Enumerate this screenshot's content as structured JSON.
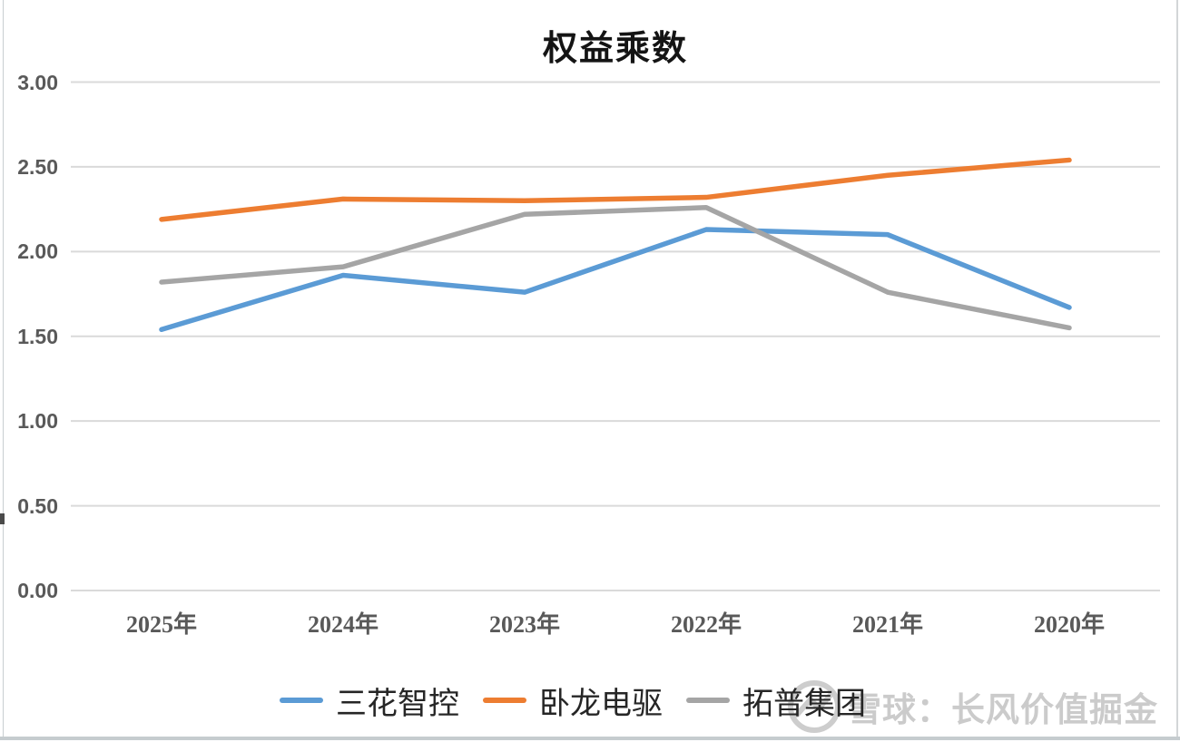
{
  "chart_data": {
    "type": "line",
    "title": "权益乘数",
    "categories": [
      "2025年",
      "2024年",
      "2023年",
      "2022年",
      "2021年",
      "2020年"
    ],
    "series": [
      {
        "name": "三花智控",
        "color": "#5B9BD5",
        "values": [
          1.54,
          1.86,
          1.76,
          2.13,
          2.1,
          1.67
        ]
      },
      {
        "name": "卧龙电驱",
        "color": "#ED7D31",
        "values": [
          2.19,
          2.31,
          2.3,
          2.32,
          2.45,
          2.54
        ]
      },
      {
        "name": "拓普集团",
        "color": "#A5A5A5",
        "values": [
          1.82,
          1.91,
          2.22,
          2.26,
          1.76,
          1.55
        ]
      }
    ],
    "ylim": [
      0,
      3
    ],
    "ytick_labels": [
      "3.00",
      "2.50",
      "2.00",
      "1.50",
      "1.00",
      "0.50",
      "0.00"
    ],
    "xlabel": "",
    "ylabel": "",
    "grid": "horizontal",
    "gridline_color": "#DADADA",
    "legend_position": "bottom"
  },
  "watermark": {
    "text": "雪球：长风价值掘金",
    "logo": "xueqiu-snowball-logo",
    "color": "#cbcbcb"
  }
}
